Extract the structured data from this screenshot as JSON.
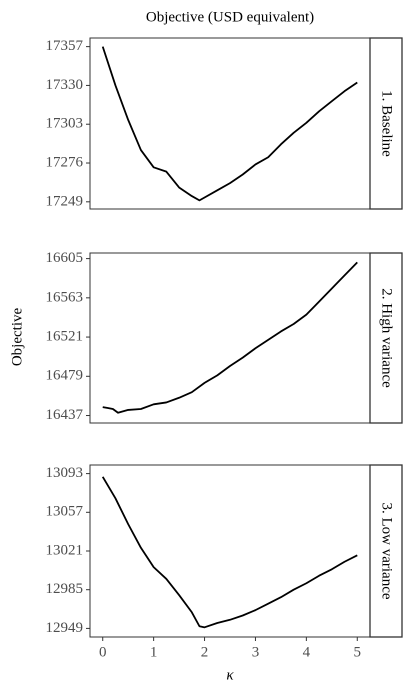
{
  "title": "Objective (USD equivalent)",
  "x_label": "κ",
  "y_label": "Objective",
  "chart_data": [
    {
      "type": "line",
      "strip": "1. Baseline",
      "color": "#000000",
      "x": [
        0,
        0.25,
        0.5,
        0.75,
        1,
        1.25,
        1.5,
        1.75,
        1.9,
        2,
        2.25,
        2.5,
        2.75,
        3,
        3.25,
        3.5,
        3.75,
        4,
        4.25,
        4.5,
        4.75,
        5
      ],
      "values": [
        17357,
        17330,
        17306,
        17285,
        17273,
        17270,
        17259,
        17253,
        17250,
        17252,
        17257,
        17262,
        17268,
        17275,
        17280,
        17289,
        17297,
        17304,
        17312,
        17319,
        17326,
        17332
      ],
      "xlim": [
        -0.25,
        5.25
      ],
      "ylim": [
        17244,
        17363
      ],
      "yticks": [
        17249,
        17276,
        17303,
        17330,
        17357
      ]
    },
    {
      "type": "line",
      "strip": "2. High variance",
      "color": "#000000",
      "x": [
        0,
        0.1,
        0.2,
        0.3,
        0.5,
        0.75,
        1,
        1.25,
        1.5,
        1.75,
        2,
        2.25,
        2.5,
        2.75,
        3,
        3.25,
        3.5,
        3.75,
        4,
        4.25,
        4.5,
        4.75,
        5
      ],
      "values": [
        16446,
        16445,
        16444,
        16440,
        16443,
        16444,
        16449,
        16451,
        16456,
        16462,
        16472,
        16480,
        16490,
        16499,
        16509,
        16518,
        16527,
        16535,
        16545,
        16559,
        16573,
        16587,
        16601
      ],
      "xlim": [
        -0.25,
        5.25
      ],
      "ylim": [
        16429,
        16611
      ],
      "yticks": [
        16437,
        16479,
        16521,
        16563,
        16605
      ]
    },
    {
      "type": "line",
      "strip": "3. Low variance",
      "color": "#000000",
      "x": [
        0,
        0.25,
        0.5,
        0.75,
        1,
        1.25,
        1.5,
        1.75,
        1.9,
        2,
        2.25,
        2.5,
        2.75,
        3,
        3.25,
        3.5,
        3.75,
        4,
        4.25,
        4.5,
        4.75,
        5
      ],
      "values": [
        13090,
        13070,
        13046,
        13024,
        13006,
        12995,
        12980,
        12964,
        12951,
        12950,
        12954,
        12957,
        12961,
        12966,
        12972,
        12978,
        12985,
        12991,
        12998,
        13004,
        13011,
        13017
      ],
      "xlim": [
        -0.25,
        5.25
      ],
      "ylim": [
        12941,
        13101
      ],
      "yticks": [
        12949,
        12985,
        13021,
        13057,
        13093
      ],
      "xticks": [
        0,
        1,
        2,
        3,
        4,
        5
      ]
    }
  ]
}
